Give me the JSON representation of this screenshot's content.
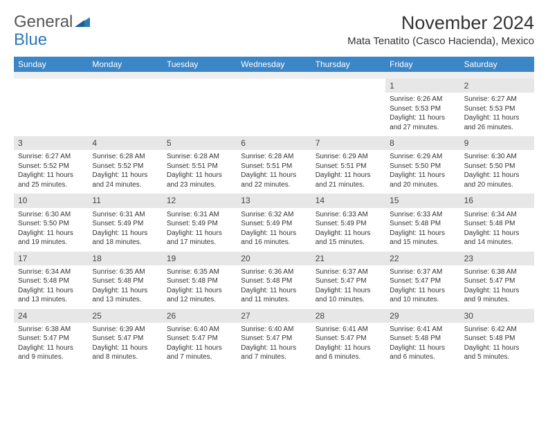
{
  "logo": {
    "word1": "General",
    "word2": "Blue"
  },
  "title": "November 2024",
  "location": "Mata Tenatito (Casco Hacienda), Mexico",
  "colors": {
    "header_bg": "#3b86c7",
    "header_text": "#ffffff",
    "daynum_bg": "#e7e7e7",
    "body_text": "#333333",
    "page_bg": "#ffffff"
  },
  "weekdays": [
    "Sunday",
    "Monday",
    "Tuesday",
    "Wednesday",
    "Thursday",
    "Friday",
    "Saturday"
  ],
  "weeks": [
    [
      null,
      null,
      null,
      null,
      null,
      {
        "n": "1",
        "sunrise": "6:26 AM",
        "sunset": "5:53 PM",
        "daylight": "11 hours and 27 minutes."
      },
      {
        "n": "2",
        "sunrise": "6:27 AM",
        "sunset": "5:53 PM",
        "daylight": "11 hours and 26 minutes."
      }
    ],
    [
      {
        "n": "3",
        "sunrise": "6:27 AM",
        "sunset": "5:52 PM",
        "daylight": "11 hours and 25 minutes."
      },
      {
        "n": "4",
        "sunrise": "6:28 AM",
        "sunset": "5:52 PM",
        "daylight": "11 hours and 24 minutes."
      },
      {
        "n": "5",
        "sunrise": "6:28 AM",
        "sunset": "5:51 PM",
        "daylight": "11 hours and 23 minutes."
      },
      {
        "n": "6",
        "sunrise": "6:28 AM",
        "sunset": "5:51 PM",
        "daylight": "11 hours and 22 minutes."
      },
      {
        "n": "7",
        "sunrise": "6:29 AM",
        "sunset": "5:51 PM",
        "daylight": "11 hours and 21 minutes."
      },
      {
        "n": "8",
        "sunrise": "6:29 AM",
        "sunset": "5:50 PM",
        "daylight": "11 hours and 20 minutes."
      },
      {
        "n": "9",
        "sunrise": "6:30 AM",
        "sunset": "5:50 PM",
        "daylight": "11 hours and 20 minutes."
      }
    ],
    [
      {
        "n": "10",
        "sunrise": "6:30 AM",
        "sunset": "5:50 PM",
        "daylight": "11 hours and 19 minutes."
      },
      {
        "n": "11",
        "sunrise": "6:31 AM",
        "sunset": "5:49 PM",
        "daylight": "11 hours and 18 minutes."
      },
      {
        "n": "12",
        "sunrise": "6:31 AM",
        "sunset": "5:49 PM",
        "daylight": "11 hours and 17 minutes."
      },
      {
        "n": "13",
        "sunrise": "6:32 AM",
        "sunset": "5:49 PM",
        "daylight": "11 hours and 16 minutes."
      },
      {
        "n": "14",
        "sunrise": "6:33 AM",
        "sunset": "5:49 PM",
        "daylight": "11 hours and 15 minutes."
      },
      {
        "n": "15",
        "sunrise": "6:33 AM",
        "sunset": "5:48 PM",
        "daylight": "11 hours and 15 minutes."
      },
      {
        "n": "16",
        "sunrise": "6:34 AM",
        "sunset": "5:48 PM",
        "daylight": "11 hours and 14 minutes."
      }
    ],
    [
      {
        "n": "17",
        "sunrise": "6:34 AM",
        "sunset": "5:48 PM",
        "daylight": "11 hours and 13 minutes."
      },
      {
        "n": "18",
        "sunrise": "6:35 AM",
        "sunset": "5:48 PM",
        "daylight": "11 hours and 13 minutes."
      },
      {
        "n": "19",
        "sunrise": "6:35 AM",
        "sunset": "5:48 PM",
        "daylight": "11 hours and 12 minutes."
      },
      {
        "n": "20",
        "sunrise": "6:36 AM",
        "sunset": "5:48 PM",
        "daylight": "11 hours and 11 minutes."
      },
      {
        "n": "21",
        "sunrise": "6:37 AM",
        "sunset": "5:47 PM",
        "daylight": "11 hours and 10 minutes."
      },
      {
        "n": "22",
        "sunrise": "6:37 AM",
        "sunset": "5:47 PM",
        "daylight": "11 hours and 10 minutes."
      },
      {
        "n": "23",
        "sunrise": "6:38 AM",
        "sunset": "5:47 PM",
        "daylight": "11 hours and 9 minutes."
      }
    ],
    [
      {
        "n": "24",
        "sunrise": "6:38 AM",
        "sunset": "5:47 PM",
        "daylight": "11 hours and 9 minutes."
      },
      {
        "n": "25",
        "sunrise": "6:39 AM",
        "sunset": "5:47 PM",
        "daylight": "11 hours and 8 minutes."
      },
      {
        "n": "26",
        "sunrise": "6:40 AM",
        "sunset": "5:47 PM",
        "daylight": "11 hours and 7 minutes."
      },
      {
        "n": "27",
        "sunrise": "6:40 AM",
        "sunset": "5:47 PM",
        "daylight": "11 hours and 7 minutes."
      },
      {
        "n": "28",
        "sunrise": "6:41 AM",
        "sunset": "5:47 PM",
        "daylight": "11 hours and 6 minutes."
      },
      {
        "n": "29",
        "sunrise": "6:41 AM",
        "sunset": "5:48 PM",
        "daylight": "11 hours and 6 minutes."
      },
      {
        "n": "30",
        "sunrise": "6:42 AM",
        "sunset": "5:48 PM",
        "daylight": "11 hours and 5 minutes."
      }
    ]
  ],
  "labels": {
    "sunrise": "Sunrise:",
    "sunset": "Sunset:",
    "daylight": "Daylight:"
  }
}
